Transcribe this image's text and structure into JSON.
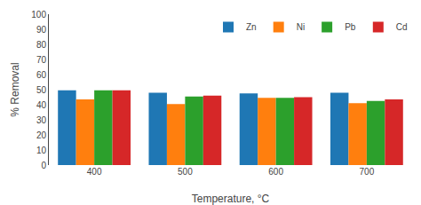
{
  "chart_data": {
    "type": "bar",
    "categories": [
      "400",
      "500",
      "600",
      "700"
    ],
    "series": [
      {
        "name": "Zn",
        "values": [
          49.5,
          48.0,
          47.5,
          48.0
        ]
      },
      {
        "name": "Ni",
        "values": [
          43.5,
          40.5,
          44.5,
          41.0
        ]
      },
      {
        "name": "Pb",
        "values": [
          49.5,
          45.5,
          44.5,
          42.5
        ]
      },
      {
        "name": "Cd",
        "values": [
          49.5,
          46.0,
          45.0,
          43.5
        ]
      }
    ],
    "xlabel": "Temperature, °C",
    "ylabel": "% Removal",
    "ylim": [
      0,
      100
    ],
    "yticks": [
      0,
      10,
      20,
      30,
      40,
      50,
      60,
      70,
      80,
      90,
      100
    ],
    "grid": false,
    "legend": "upper right"
  }
}
